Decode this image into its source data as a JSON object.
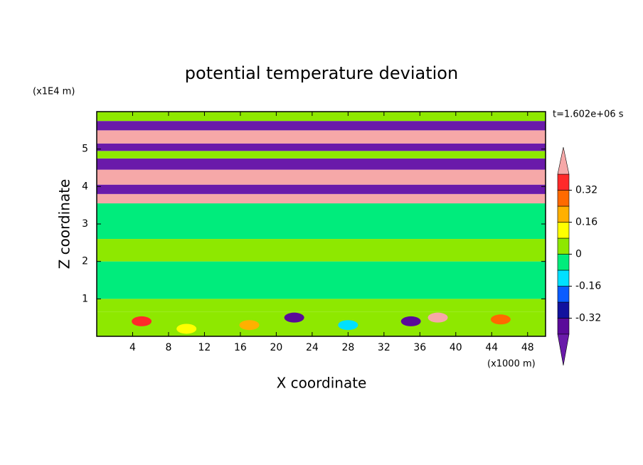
{
  "chart_data": {
    "type": "contour",
    "title": "potential temperature deviation",
    "x_label": "X coordinate",
    "y_label": "Z coordinate",
    "x_unit": "(x1000 m)",
    "y_unit": "(x1E4 m)",
    "annotation": "t=1.602e+06 s",
    "xlim": [
      0,
      50
    ],
    "xticks": [
      4,
      8,
      12,
      16,
      20,
      24,
      28,
      32,
      36,
      40,
      44,
      48
    ],
    "ylim": [
      0,
      6
    ],
    "yticks": [
      1,
      2,
      3,
      4,
      5
    ],
    "levels": [
      -0.4,
      -0.32,
      -0.24,
      -0.16,
      -0.08,
      0,
      0.08,
      0.16,
      0.24,
      0.32,
      0.4
    ],
    "colorbar_ticks": [
      -0.32,
      -0.16,
      0,
      0.16,
      0.32
    ],
    "colors": [
      "#6a1aaa",
      "#5a0a9a",
      "#12129e",
      "#0a5cff",
      "#00e0ff",
      "#00ec7c",
      "#8ee800",
      "#ffff00",
      "#ffb000",
      "#ff6a00",
      "#ff2a2a",
      "#f6a8a8"
    ],
    "bands": [
      {
        "z": [
          0,
          0.65
        ],
        "value": 0.04
      },
      {
        "z": [
          0.65,
          1.0
        ],
        "value": 0.04
      },
      {
        "z": [
          1.0,
          2.0
        ],
        "value": -0.04
      },
      {
        "z": [
          2.0,
          2.6
        ],
        "value": 0.04
      },
      {
        "z": [
          2.6,
          3.55
        ],
        "value": -0.04
      },
      {
        "z": [
          3.55,
          3.8
        ],
        "value": 0.45
      },
      {
        "z": [
          3.8,
          4.05
        ],
        "value": -0.45
      },
      {
        "z": [
          4.05,
          4.45
        ],
        "value": 0.45
      },
      {
        "z": [
          4.45,
          4.75
        ],
        "value": -0.45
      },
      {
        "z": [
          4.75,
          4.95
        ],
        "value": 0.04
      },
      {
        "z": [
          4.95,
          5.15
        ],
        "value": -0.45
      },
      {
        "z": [
          5.15,
          5.5
        ],
        "value": 0.45
      },
      {
        "z": [
          5.5,
          5.75
        ],
        "value": -0.45
      },
      {
        "z": [
          5.75,
          6
        ],
        "value": 0.04
      }
    ],
    "spots": [
      {
        "x": 5,
        "z": 0.4,
        "value": 0.36
      },
      {
        "x": 10,
        "z": 0.2,
        "value": 0.12
      },
      {
        "x": 17,
        "z": 0.3,
        "value": 0.2
      },
      {
        "x": 22,
        "z": 0.5,
        "value": -0.36
      },
      {
        "x": 28,
        "z": 0.3,
        "value": -0.12
      },
      {
        "x": 35,
        "z": 0.4,
        "value": -0.36
      },
      {
        "x": 38,
        "z": 0.5,
        "value": 0.45
      },
      {
        "x": 45,
        "z": 0.45,
        "value": 0.28
      }
    ]
  }
}
